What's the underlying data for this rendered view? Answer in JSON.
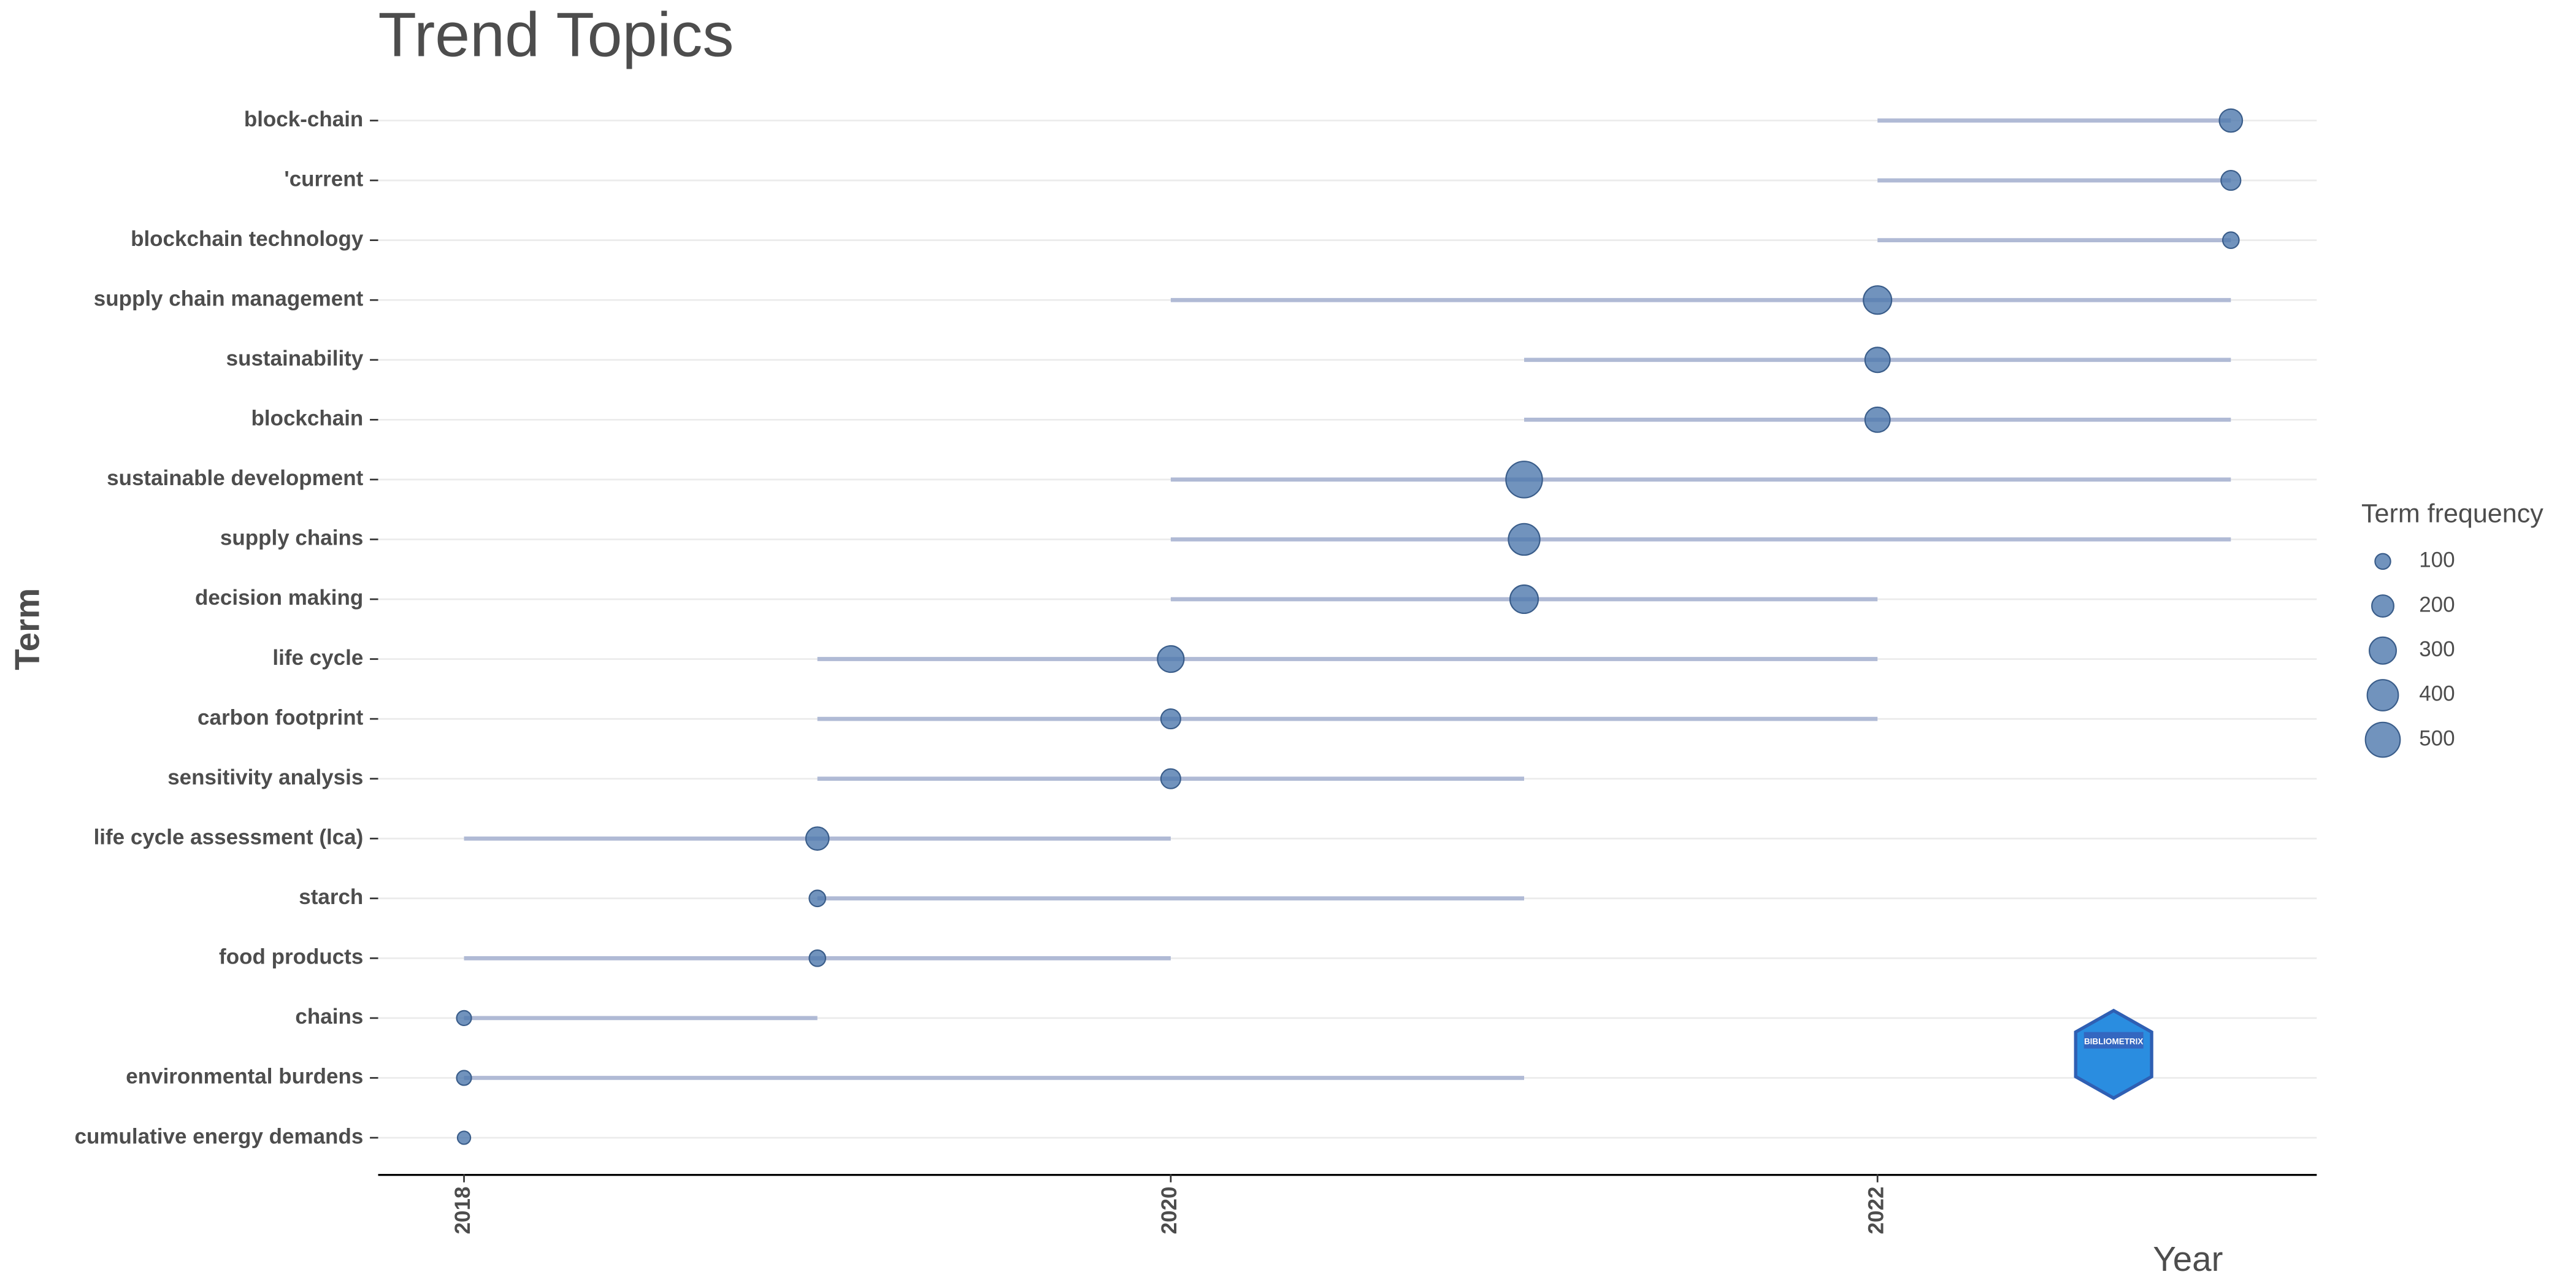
{
  "chart_data": {
    "type": "trend",
    "title": "Trend Topics",
    "y_label": "Term",
    "x_label": "Year",
    "legend_title": "Term frequency",
    "legend_values": [
      100,
      200,
      300,
      400,
      500
    ],
    "logo_text": "BIBLIOMETRIX",
    "categories": [
      "block-chain",
      "'current",
      "blockchain technology",
      "supply chain management",
      "sustainability",
      "blockchain",
      "sustainable development",
      "supply chains",
      "decision making",
      "life cycle",
      "carbon footprint",
      "sensitivity analysis",
      "life cycle assessment (lca)",
      "starch",
      "food products",
      "chains",
      "environmental burdens",
      "cumulative energy demands"
    ],
    "start": [
      2022,
      2022,
      2022,
      2020,
      2021,
      2021,
      2020,
      2020,
      2020,
      2019,
      2019,
      2019,
      2018,
      2019,
      2018,
      2018,
      2018,
      2018
    ],
    "median": [
      2023,
      2023,
      2023,
      2022,
      2022,
      2022,
      2021,
      2021,
      2021,
      2020,
      2020,
      2020,
      2019,
      2019,
      2019,
      2018,
      2018,
      2018
    ],
    "end": [
      2023,
      2023,
      2023,
      2023,
      2023,
      2023,
      2023,
      2023,
      2022,
      2022,
      2022,
      2021,
      2020,
      2021,
      2020,
      2019,
      2021,
      2018
    ],
    "frequency": [
      220,
      160,
      110,
      330,
      260,
      260,
      550,
      410,
      330,
      290,
      160,
      160,
      220,
      110,
      110,
      90,
      90,
      70
    ],
    "line_color": "#b0bad5",
    "point_color": "#4e78ad",
    "xlim": [
      2017.757,
      2023.243
    ],
    "xticks": [
      2018,
      2020,
      2022
    ],
    "grid": true
  }
}
